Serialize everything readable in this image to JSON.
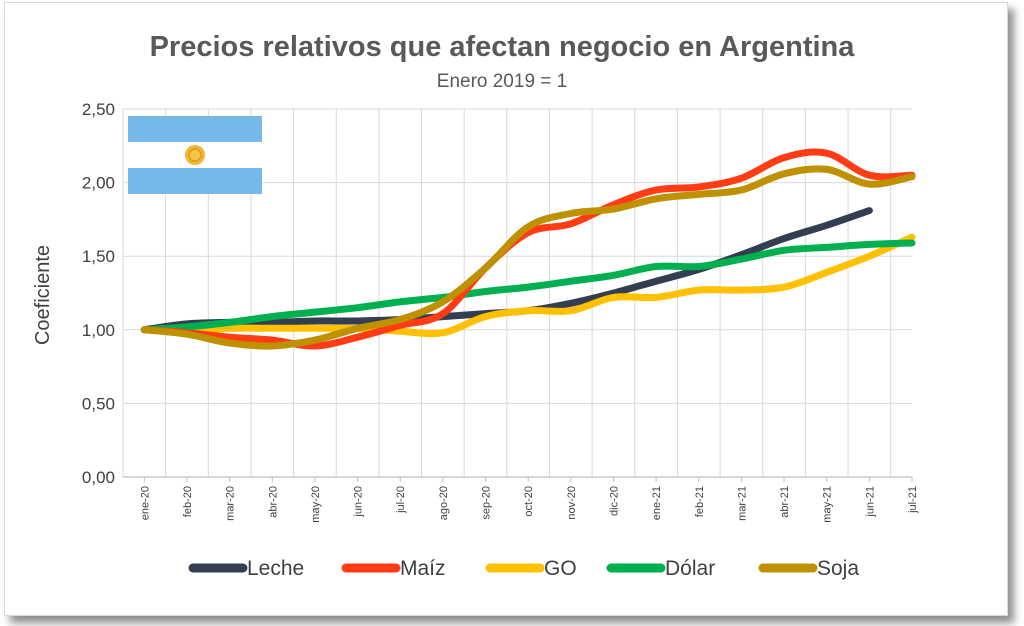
{
  "chart_data": {
    "type": "line",
    "title": "Precios relativos que afectan negocio en Argentina",
    "subtitle": "Enero 2019 = 1",
    "xlabel": "",
    "ylabel": "Coeficiente",
    "ylim": [
      0,
      2.5
    ],
    "yticks": [
      "0,00",
      "0,50",
      "1,00",
      "1,50",
      "2,00",
      "2,50"
    ],
    "categories": [
      "ene-20",
      "feb-20",
      "mar-20",
      "abr-20",
      "may-20",
      "jun-20",
      "jul-20",
      "ago-20",
      "sep-20",
      "oct-20",
      "nov-20",
      "dic-20",
      "ene-21",
      "feb-21",
      "mar-21",
      "abr-21",
      "may-21",
      "jun-21",
      "jul-21"
    ],
    "grid": true,
    "legend": "bottom",
    "series": [
      {
        "name": "Leche",
        "color": "#333f50",
        "values": [
          1.0,
          1.04,
          1.05,
          1.05,
          1.06,
          1.06,
          1.07,
          1.09,
          1.11,
          1.13,
          1.18,
          1.25,
          1.33,
          1.41,
          1.51,
          1.62,
          1.71,
          1.81,
          null
        ]
      },
      {
        "name": "Maíz",
        "color": "#ff3c14",
        "values": [
          1.0,
          0.98,
          0.95,
          0.93,
          0.89,
          0.95,
          1.03,
          1.11,
          1.42,
          1.66,
          1.72,
          1.85,
          1.95,
          1.97,
          2.03,
          2.17,
          2.2,
          2.05,
          2.05
        ]
      },
      {
        "name": "GO",
        "color": "#ffc000",
        "values": [
          1.0,
          0.99,
          1.01,
          1.01,
          1.01,
          1.01,
          0.99,
          0.98,
          1.09,
          1.13,
          1.13,
          1.22,
          1.22,
          1.27,
          1.27,
          1.29,
          1.39,
          1.5,
          1.63
        ]
      },
      {
        "name": "Dólar",
        "color": "#00b050",
        "values": [
          1.0,
          1.02,
          1.05,
          1.09,
          1.12,
          1.15,
          1.19,
          1.22,
          1.26,
          1.29,
          1.33,
          1.37,
          1.43,
          1.43,
          1.48,
          1.54,
          1.56,
          1.58,
          1.59
        ]
      },
      {
        "name": "Soja",
        "color": "#bf9000",
        "values": [
          1.0,
          0.97,
          0.91,
          0.89,
          0.93,
          1.01,
          1.07,
          1.19,
          1.42,
          1.7,
          1.79,
          1.82,
          1.89,
          1.92,
          1.95,
          2.06,
          2.09,
          1.99,
          2.04
        ]
      }
    ]
  }
}
